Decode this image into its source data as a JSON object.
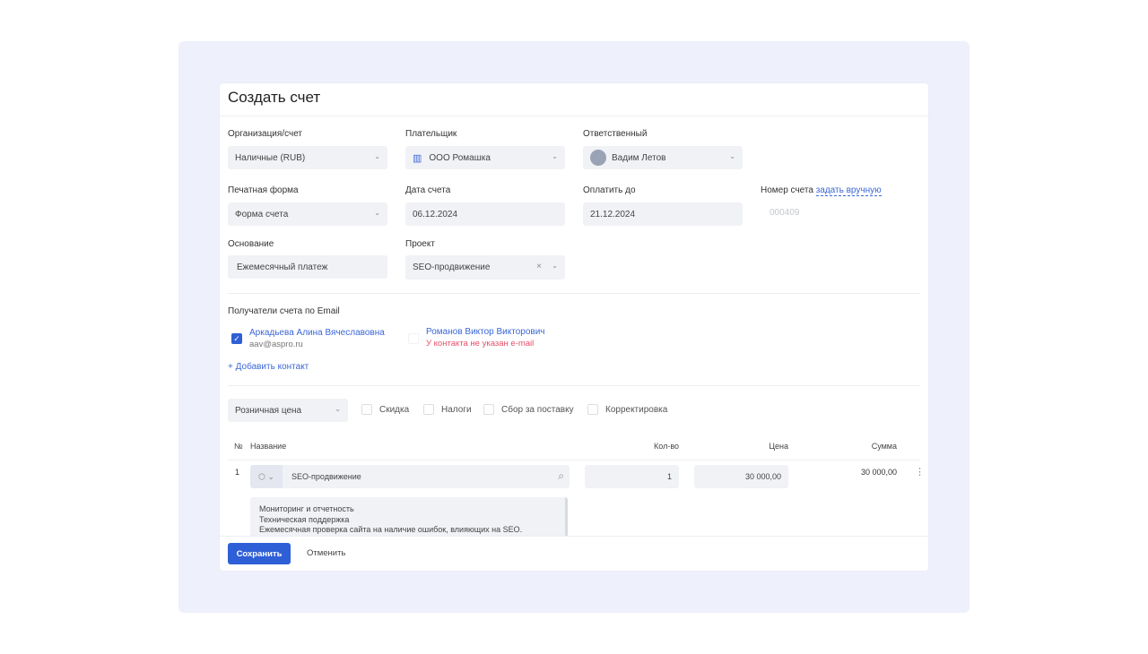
{
  "title": "Создать счет",
  "fields": {
    "org": {
      "label": "Организация/счет",
      "value": "Наличные (RUB)"
    },
    "payer": {
      "label": "Плательщик",
      "value": "ООО Ромашка",
      "icon": "building-icon"
    },
    "responsible": {
      "label": "Ответственный",
      "value": "Вадим Летов"
    },
    "print_form": {
      "label": "Печатная форма",
      "value": "Форма счета"
    },
    "invoice_date": {
      "label": "Дата счета",
      "value": "06.12.2024"
    },
    "pay_until": {
      "label": "Оплатить до",
      "value": "21.12.2024"
    },
    "invoice_number": {
      "label": "Номер счета",
      "link": "задать вручную",
      "placeholder": "000409"
    },
    "basis": {
      "label": "Основание",
      "value": "Ежемесячный платеж"
    },
    "project": {
      "label": "Проект",
      "value": "SEO-продвижение",
      "clear": "×"
    }
  },
  "recipients": {
    "label": "Получатели счета по Email",
    "contacts": [
      {
        "name": "Аркадьева Алина Вячеславовна",
        "sub": "aav@aspro.ru",
        "checked": true
      },
      {
        "name": "Романов Виктор Викторович",
        "sub": "У контакта не указан e-mail",
        "checked": false
      }
    ],
    "add": "+ Добавить контакт"
  },
  "pricing": {
    "price_type": "Розничная цена",
    "options": [
      "Скидка",
      "Налоги",
      "Сбор за поставку",
      "Корректировка"
    ]
  },
  "table": {
    "headers": {
      "num": "№",
      "name": "Название",
      "qty": "Кол-во",
      "price": "Цена",
      "sum": "Сумма"
    },
    "rows": [
      {
        "num": "1",
        "name": "SEO-продвижение",
        "qty": "1",
        "price": "30 000,00",
        "sum": "30 000,00",
        "description": [
          "Мониторинг и отчетность",
          "Техническая поддержка",
          "Ежемесячная проверка сайта на наличие ошибок, влияющих на SEO."
        ]
      }
    ]
  },
  "footer": {
    "save": "Сохранить",
    "cancel": "Отменить"
  },
  "colors": {
    "accent": "#2f5fd6",
    "error": "#e8506a",
    "background": "#eef0fb"
  }
}
